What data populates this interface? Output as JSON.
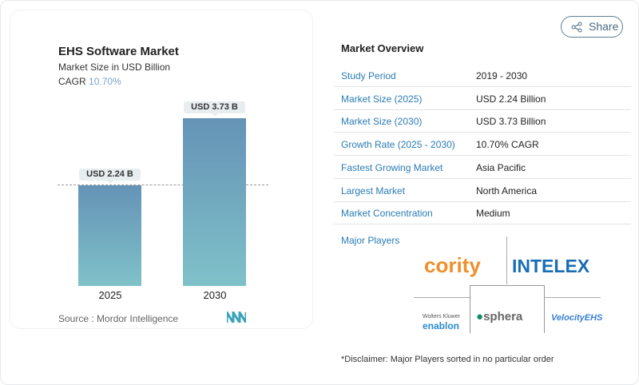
{
  "chart": {
    "title": "EHS Software Market",
    "subtitle": "Market Size in USD Billion",
    "cagr_label": "CAGR",
    "cagr_value": "10.70%",
    "source": "Source :  Mordor Intelligence"
  },
  "chart_data": {
    "type": "bar",
    "categories": [
      "2025",
      "2030"
    ],
    "values": [
      2.24,
      3.73
    ],
    "data_labels": [
      "USD 2.24 B",
      "USD 3.73 B"
    ],
    "title": "EHS Software Market",
    "ylabel": "Market Size in USD Billion",
    "grid": false,
    "colors": [
      "#6593b6",
      "#7fc1c9"
    ]
  },
  "share_label": "Share",
  "overview": {
    "title": "Market Overview",
    "rows": [
      {
        "k": "Study Period",
        "v": "2019 - 2030"
      },
      {
        "k": "Market Size (2025)",
        "v": "USD 2.24 Billion"
      },
      {
        "k": "Market Size (2030)",
        "v": "USD 3.73 Billion"
      },
      {
        "k": "Growth Rate (2025 - 2030)",
        "v": "10.70% CAGR"
      },
      {
        "k": "Fastest Growing Market",
        "v": "Asia Pacific"
      },
      {
        "k": "Largest Market",
        "v": "North America"
      },
      {
        "k": "Market Concentration",
        "v": "Medium"
      }
    ],
    "major_players": "Major Players",
    "players": [
      "cority",
      "INTELEX",
      "Wolters Kluwer",
      "enablon",
      "sphera",
      "VelocityEHS"
    ],
    "disclaimer": "*Disclaimer: Major Players sorted in no particular order"
  }
}
